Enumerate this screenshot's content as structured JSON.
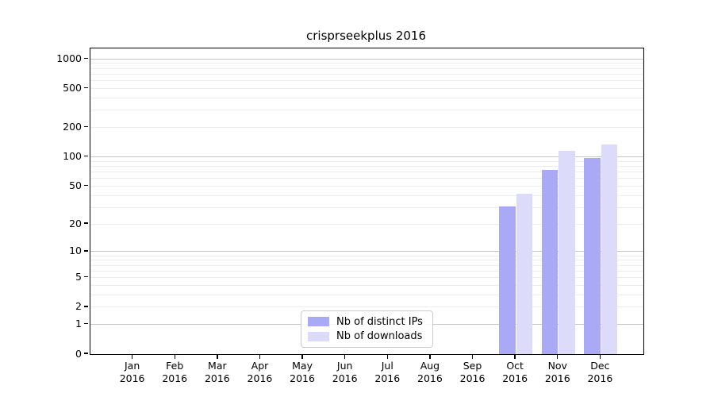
{
  "chart_data": {
    "type": "bar",
    "title": "crisprseekplus 2016",
    "categories": [
      "Jan",
      "Feb",
      "Mar",
      "Apr",
      "May",
      "Jun",
      "Jul",
      "Aug",
      "Sep",
      "Oct",
      "Nov",
      "Dec"
    ],
    "category_year": "2016",
    "series": [
      {
        "name": "Nb of distinct IPs",
        "color": "#a9a9f5",
        "values": [
          0,
          0,
          0,
          0,
          0,
          0,
          0,
          0,
          0,
          31,
          74,
          97
        ]
      },
      {
        "name": "Nb of downloads",
        "color": "#dcdcfa",
        "values": [
          0,
          0,
          0,
          0,
          0,
          0,
          0,
          0,
          0,
          42,
          115,
          134
        ]
      }
    ],
    "yscale": "log10(1+v)",
    "ylim": [
      0,
      1300
    ],
    "yticks": [
      0,
      1,
      2,
      5,
      10,
      20,
      50,
      100,
      200,
      500,
      1000
    ],
    "major_gridlines": [
      1,
      10,
      100,
      1000
    ],
    "minor_gridlines": [
      2,
      3,
      4,
      5,
      6,
      7,
      8,
      9,
      20,
      30,
      40,
      50,
      60,
      70,
      80,
      90,
      200,
      300,
      400,
      500,
      600,
      700,
      800,
      900
    ],
    "grid": true,
    "legend_position": "bottom-center",
    "colors": {
      "major_grid": "#c6c6c6",
      "minor_grid": "#ececec",
      "axis": "#000000",
      "background": "#ffffff"
    }
  }
}
